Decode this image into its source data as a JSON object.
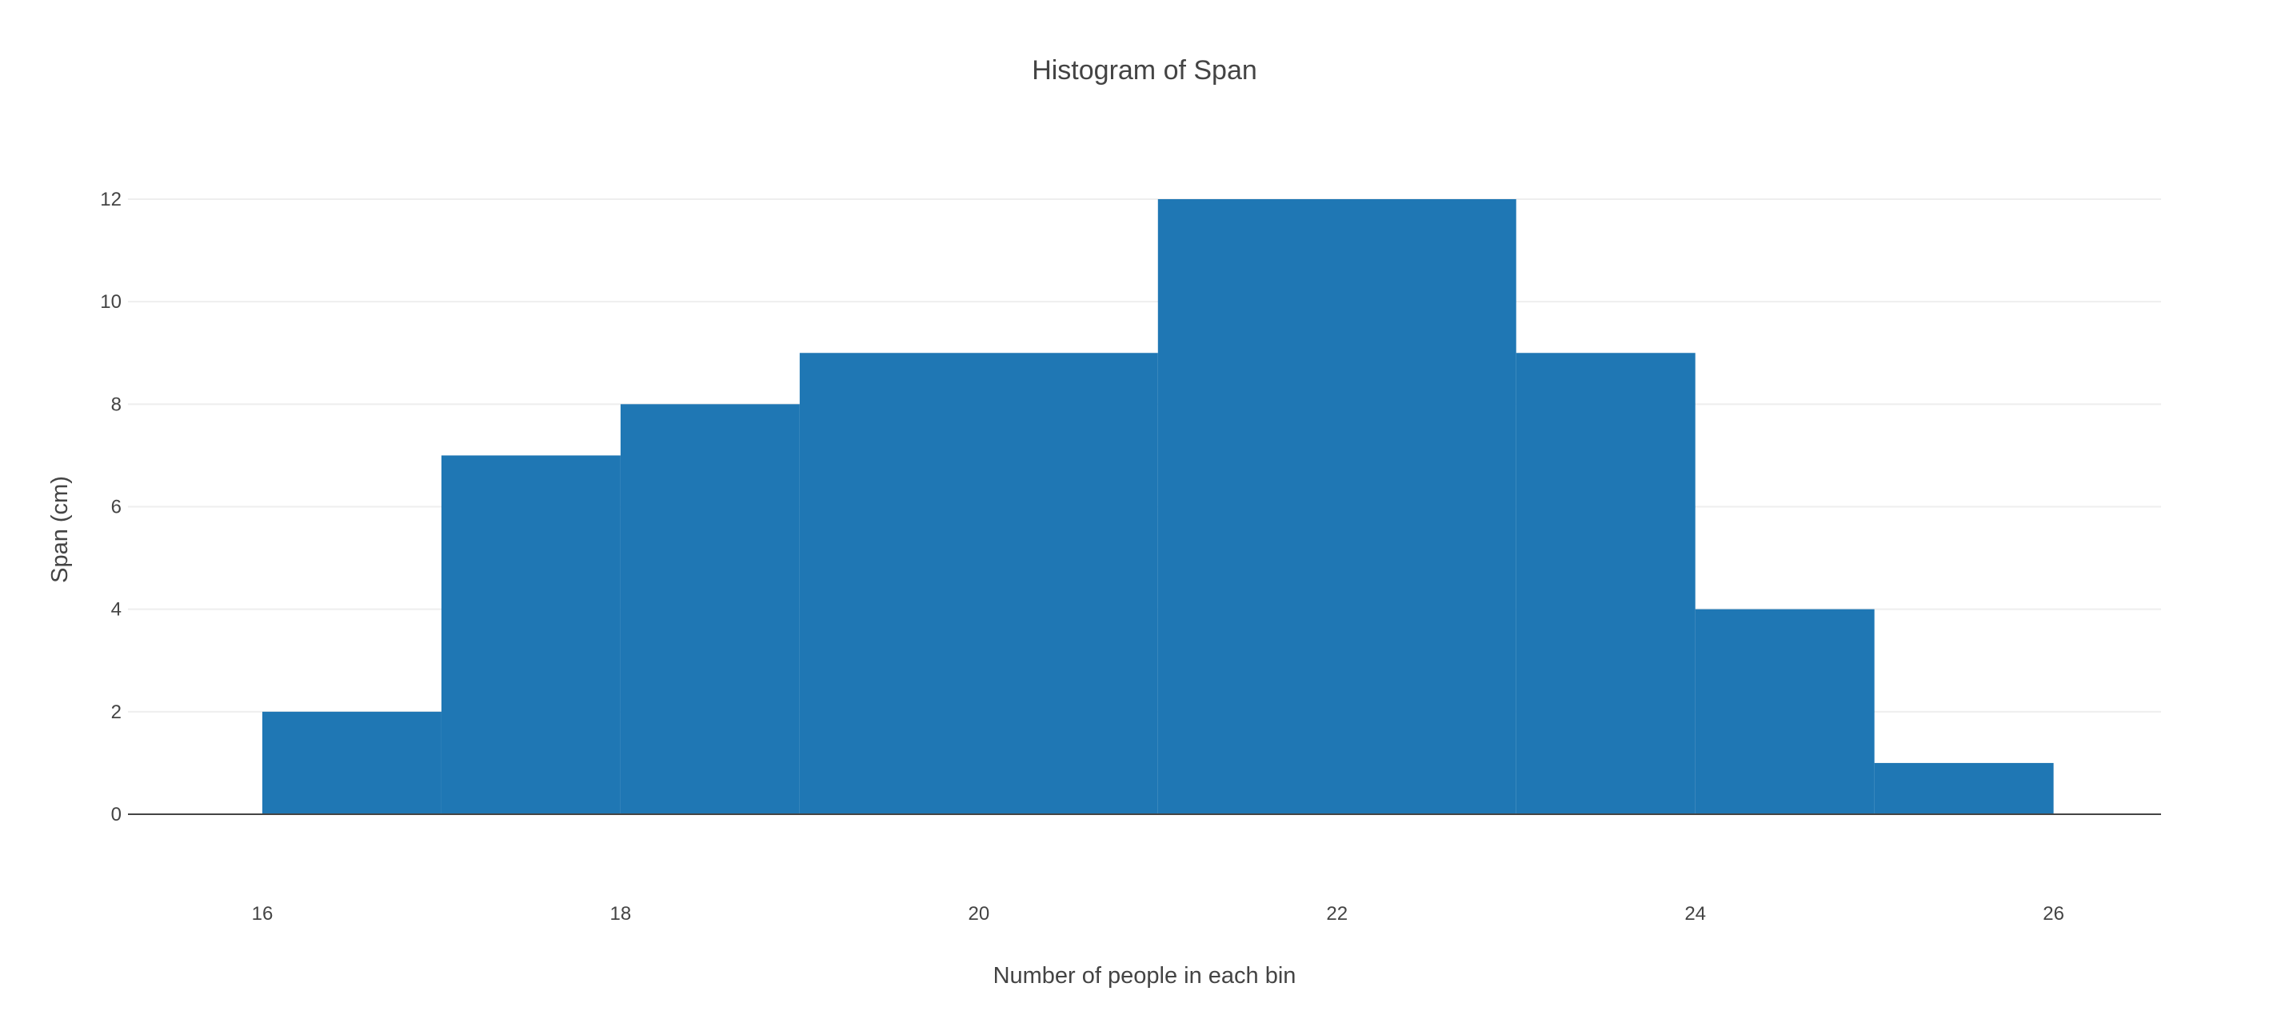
{
  "chart_data": {
    "type": "bar",
    "title": "Histogram of Span",
    "xlabel": "Number of people in each bin",
    "ylabel": "Span (cm)",
    "bins": [
      {
        "start": 16,
        "end": 17,
        "count": 2
      },
      {
        "start": 17,
        "end": 18,
        "count": 7
      },
      {
        "start": 18,
        "end": 19,
        "count": 8
      },
      {
        "start": 19,
        "end": 21,
        "count": 9
      },
      {
        "start": 21,
        "end": 23,
        "count": 12
      },
      {
        "start": 23,
        "end": 24,
        "count": 9
      },
      {
        "start": 24,
        "end": 25,
        "count": 4
      },
      {
        "start": 25,
        "end": 26,
        "count": 1
      }
    ],
    "xlim": [
      15.25,
      26.6
    ],
    "ylim": [
      0,
      12
    ],
    "xticks": [
      16,
      18,
      20,
      22,
      24,
      26
    ],
    "yticks": [
      0,
      2,
      4,
      6,
      8,
      10,
      12
    ],
    "xtick_labels": [
      "16",
      "18",
      "20",
      "22",
      "24",
      "26"
    ],
    "ytick_labels": [
      "0",
      "2",
      "4",
      "6",
      "8",
      "10",
      "12"
    ],
    "grid": true,
    "legend": "none",
    "bar_color": "#1f77b4"
  }
}
